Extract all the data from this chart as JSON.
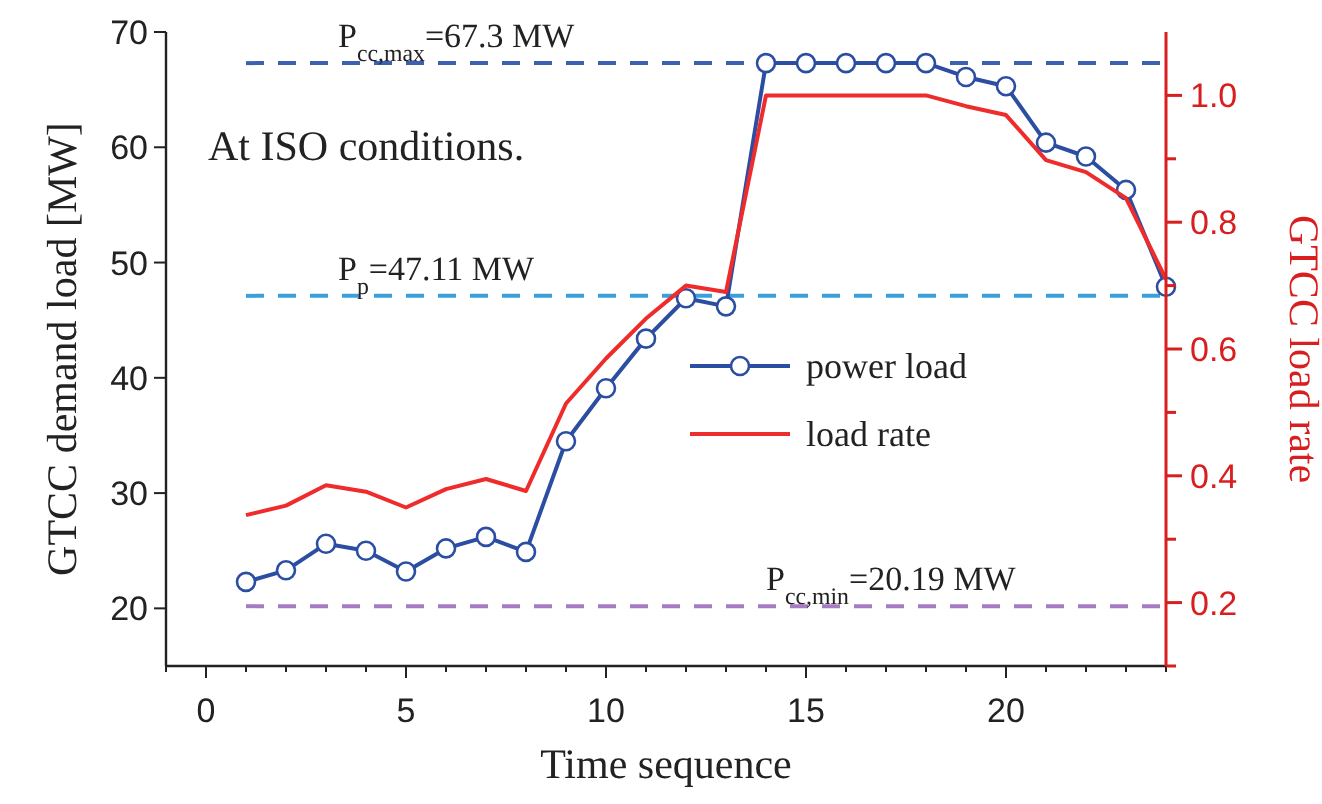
{
  "chart_data": {
    "type": "line",
    "xlabel": "Time sequence",
    "ylabel": "GTCC demand load [MW]",
    "y2label": "GTCC load rate",
    "x": [
      1,
      2,
      3,
      4,
      5,
      6,
      7,
      8,
      9,
      10,
      11,
      12,
      13,
      14,
      15,
      16,
      17,
      18,
      19,
      20,
      21,
      22,
      23,
      24
    ],
    "xlim": [
      -1,
      24
    ],
    "xticks": [
      0,
      5,
      10,
      15,
      20
    ],
    "ylim": [
      15,
      70
    ],
    "yticks": [
      20,
      30,
      40,
      50,
      60,
      70
    ],
    "y2lim": [
      0.1,
      1.1
    ],
    "y2ticks": [
      {
        "value": 0.1,
        "label": null
      },
      0.2,
      {
        "value": 0.3,
        "label": null
      },
      0.4,
      {
        "value": 0.5,
        "label": null
      },
      0.6,
      {
        "value": 0.7,
        "label": null
      },
      0.8,
      {
        "value": 0.9,
        "label": null
      },
      {
        "value": 1.0,
        "label": "1.0"
      }
    ],
    "series": [
      {
        "name": "power load",
        "color": "#2b4ea2",
        "marker": "circle",
        "values": [
          22.3,
          23.3,
          25.6,
          25.0,
          23.2,
          25.2,
          26.2,
          24.9,
          34.5,
          39.1,
          43.4,
          46.9,
          46.2,
          67.3,
          67.3,
          67.3,
          67.3,
          67.3,
          66.1,
          65.3,
          60.4,
          59.2,
          56.3,
          47.9
        ]
      },
      {
        "name": "load rate",
        "color": "#ee2c2c",
        "axis": "y2",
        "marker": "none",
        "values": [
          0.338,
          0.353,
          0.385,
          0.375,
          0.35,
          0.379,
          0.395,
          0.376,
          0.514,
          0.585,
          0.648,
          0.7,
          0.69,
          1.0,
          1.0,
          1.0,
          1.0,
          1.0,
          0.983,
          0.969,
          0.898,
          0.879,
          0.838,
          0.71
        ]
      }
    ],
    "ref_lines": [
      {
        "axis": "y",
        "value": 67.3,
        "label": "P$_{cc,max}$=67.3 MW",
        "color": "#3b62b0",
        "line_style": "dashed"
      },
      {
        "axis": "y",
        "value": 47.11,
        "label": "P$_{p}$=47.11 MW",
        "color": "#3aa0dc",
        "line_style": "dashed"
      },
      {
        "axis": "y",
        "value": 20.19,
        "label": "P$_{cc,min}$=20.19 MW",
        "color": "#a57cc4",
        "line_style": "dashed"
      }
    ],
    "annotations": [
      "At ISO conditions."
    ],
    "legend": "right",
    "grid": false
  }
}
